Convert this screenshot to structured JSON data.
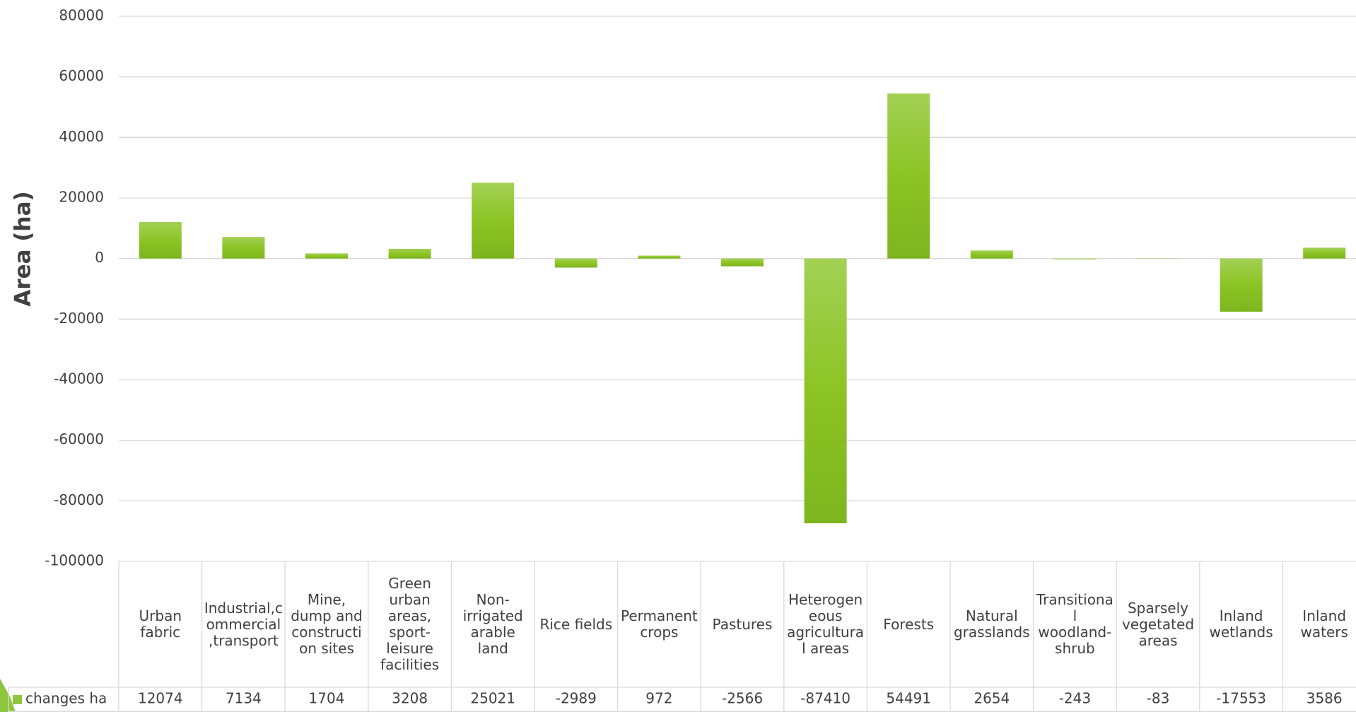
{
  "chart_data": {
    "type": "bar",
    "y_label": "Area (ha)",
    "categories": [
      "Urban fabric",
      "Industrial,commercial,transport",
      "Mine, dump and construction sites",
      "Green urban areas, sport-leisure facilities",
      "Non-irrigated arable land",
      "Rice fields",
      "Permanent crops",
      "Pastures",
      "Heterogeneous agricultural areas",
      "Forests",
      "Natural grasslands",
      "Transitional woodland-shrub",
      "Sparsely vegetated areas",
      "Inland wetlands",
      "Inland waters"
    ],
    "series": [
      {
        "name": "changes ha",
        "color": "#8cc63e",
        "values": [
          12074,
          7134,
          1704,
          3208,
          25021,
          -2989,
          972,
          -2566,
          -87410,
          54491,
          2654,
          -243,
          -83,
          -17553,
          3586
        ]
      }
    ],
    "ylim": [
      -100000,
      80000
    ],
    "yticks": [
      -100000,
      -80000,
      -60000,
      -40000,
      -20000,
      0,
      20000,
      40000,
      60000,
      80000
    ],
    "grid": true
  }
}
